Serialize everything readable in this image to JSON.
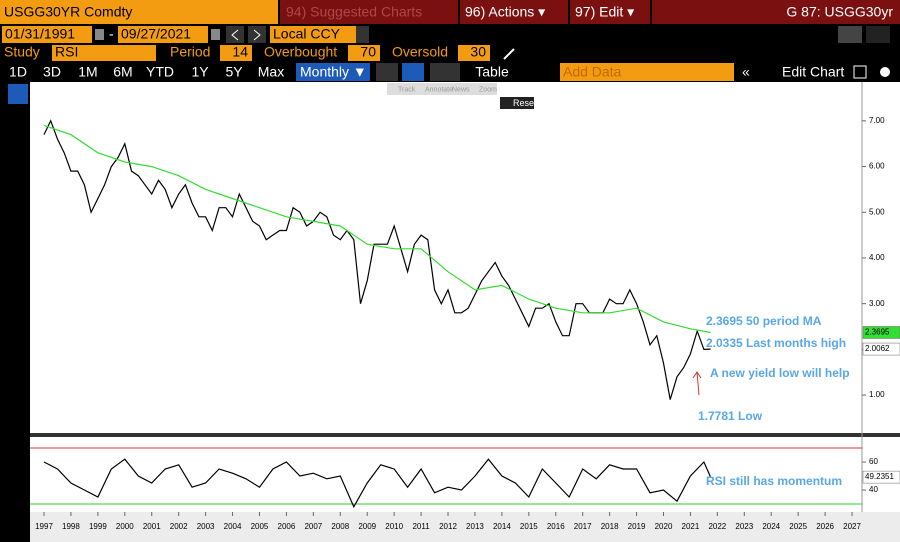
{
  "header": {
    "security": "USGG30YR Comdty",
    "suggested": "94) Suggested Charts",
    "actions": "96) Actions ▾",
    "edit": "97) Edit ▾",
    "page": "G 87: USGG30yr"
  },
  "controls": {
    "start": "01/31/1991",
    "dash": "-",
    "end": "09/27/2021",
    "currency": "Local CCY",
    "study_label": "Study",
    "study": "RSI",
    "period_label": "Period",
    "period": 14,
    "overbought_label": "Overbought",
    "overbought": 70,
    "oversold_label": "Oversold",
    "oversold": 30
  },
  "ranges": [
    "1D",
    "3D",
    "1M",
    "6M",
    "YTD",
    "1Y",
    "5Y",
    "Max"
  ],
  "frequency": "Monthly ▼",
  "table": "Table",
  "add_data": "Add Data",
  "edit_chart": "Edit Chart",
  "mini_toolbar": [
    "Track",
    "Annotate",
    "News",
    "Zoom"
  ],
  "reset": "Reset",
  "chart_data": [
    {
      "type": "line",
      "xlim": [
        1996.48,
        2027.37
      ],
      "ylim": [
        0.17,
        7.85
      ],
      "yticks": [
        {
          "value": 1,
          "label": "1.00"
        },
        {
          "value": 2,
          "label": "2.00"
        },
        {
          "value": 3,
          "label": "3.00"
        },
        {
          "value": 4,
          "label": "4.00"
        },
        {
          "value": 5,
          "label": "5.00"
        },
        {
          "value": 6,
          "label": "6.00"
        },
        {
          "value": 7,
          "label": "7.00"
        }
      ],
      "series": [
        {
          "color": "#000000",
          "x": [
            1997,
            1997.25,
            1997.5,
            1997.75,
            1998,
            1998.25,
            1998.5,
            1998.75,
            1999,
            1999.25,
            1999.5,
            1999.75,
            2000,
            2000.25,
            2000.5,
            2000.75,
            2001,
            2001.25,
            2001.5,
            2001.75,
            2002,
            2002.25,
            2002.5,
            2002.75,
            2003,
            2003.25,
            2003.5,
            2003.75,
            2004,
            2004.25,
            2004.5,
            2004.75,
            2005,
            2005.25,
            2005.5,
            2005.75,
            2006,
            2006.25,
            2006.5,
            2006.75,
            2007,
            2007.25,
            2007.5,
            2007.75,
            2008,
            2008.25,
            2008.5,
            2008.75,
            2009,
            2009.25,
            2009.5,
            2009.75,
            2010,
            2010.25,
            2010.5,
            2010.75,
            2011,
            2011.25,
            2011.5,
            2011.75,
            2012,
            2012.25,
            2012.5,
            2012.75,
            2013,
            2013.25,
            2013.5,
            2013.75,
            2014,
            2014.25,
            2014.5,
            2014.75,
            2015,
            2015.25,
            2015.5,
            2015.75,
            2016,
            2016.25,
            2016.5,
            2016.75,
            2017,
            2017.25,
            2017.5,
            2017.75,
            2018,
            2018.25,
            2018.5,
            2018.75,
            2019,
            2019.25,
            2019.5,
            2019.75,
            2020,
            2020.25,
            2020.5,
            2020.75,
            2021,
            2021.25,
            2021.5,
            2021.75
          ],
          "values": [
            6.7,
            7.0,
            6.6,
            6.3,
            5.9,
            5.9,
            5.6,
            5.0,
            5.3,
            5.6,
            6.0,
            6.2,
            6.5,
            5.9,
            5.8,
            5.6,
            5.4,
            5.7,
            5.5,
            5.1,
            5.4,
            5.6,
            5.2,
            4.9,
            4.9,
            4.6,
            5.1,
            5.1,
            4.9,
            5.4,
            5.1,
            4.8,
            4.7,
            4.4,
            4.5,
            4.6,
            4.6,
            5.1,
            5.0,
            4.7,
            4.8,
            5.0,
            4.9,
            4.5,
            4.4,
            4.6,
            4.4,
            3.0,
            3.5,
            4.3,
            4.3,
            4.3,
            4.7,
            4.2,
            3.7,
            4.3,
            4.5,
            4.4,
            3.3,
            3.0,
            3.3,
            2.8,
            2.8,
            2.9,
            3.2,
            3.5,
            3.7,
            3.9,
            3.6,
            3.4,
            3.1,
            2.8,
            2.5,
            2.9,
            2.9,
            3.0,
            2.6,
            2.3,
            2.3,
            3.0,
            3.0,
            2.8,
            2.8,
            2.8,
            3.1,
            3.0,
            3.0,
            3.3,
            3.0,
            2.6,
            2.1,
            2.3,
            1.7,
            0.9,
            1.4,
            1.6,
            1.9,
            2.4,
            2.0,
            2.0062
          ]
        },
        {
          "color": "#33dd33",
          "x": [
            1997,
            1998,
            1999,
            2000,
            2001,
            2002,
            2003,
            2004,
            2005,
            2006,
            2007,
            2008,
            2009,
            2010,
            2011,
            2012,
            2013,
            2014,
            2015,
            2016,
            2017,
            2018,
            2019,
            2020,
            2021,
            2021.75
          ],
          "values": [
            6.9,
            6.7,
            6.3,
            6.1,
            6.0,
            5.8,
            5.5,
            5.3,
            5.1,
            4.9,
            4.8,
            4.7,
            4.3,
            4.2,
            4.2,
            3.7,
            3.3,
            3.4,
            3.1,
            2.9,
            2.8,
            2.8,
            2.9,
            2.6,
            2.45,
            2.3695
          ]
        }
      ],
      "current_values": [
        2.3695,
        2.0062
      ],
      "annotations": [
        "2.3695 50 period MA",
        "2.0335 Last months high",
        "A new yield low will help",
        "1.7781 Low"
      ]
    },
    {
      "type": "line",
      "xlim": [
        1996.48,
        2027.37
      ],
      "ylim": [
        24.3,
        77.9
      ],
      "xticks": [
        1997,
        1998,
        1999,
        2000,
        2001,
        2002,
        2003,
        2004,
        2005,
        2006,
        2007,
        2008,
        2009,
        2010,
        2011,
        2012,
        2013,
        2014,
        2015,
        2016,
        2017,
        2018,
        2019,
        2020,
        2021,
        2022,
        2023,
        2024,
        2025,
        2026,
        2027
      ],
      "yticks": [
        40,
        60
      ],
      "series": [
        {
          "color": "#000000",
          "x": [
            1997,
            1997.5,
            1998,
            1998.5,
            1999,
            1999.5,
            2000,
            2000.5,
            2001,
            2001.5,
            2002,
            2002.5,
            2003,
            2003.5,
            2004,
            2004.5,
            2005,
            2005.5,
            2006,
            2006.5,
            2007,
            2007.5,
            2008,
            2008.5,
            2009,
            2009.5,
            2010,
            2010.5,
            2011,
            2011.5,
            2012,
            2012.5,
            2013,
            2013.5,
            2014,
            2014.5,
            2015,
            2015.5,
            2016,
            2016.5,
            2017,
            2017.5,
            2018,
            2018.5,
            2019,
            2019.5,
            2020,
            2020.5,
            2021,
            2021.5,
            2021.75
          ],
          "values": [
            60,
            55,
            45,
            40,
            35,
            55,
            62,
            50,
            45,
            55,
            58,
            42,
            45,
            55,
            52,
            48,
            42,
            55,
            60,
            50,
            52,
            48,
            50,
            28,
            45,
            58,
            55,
            42,
            55,
            38,
            42,
            40,
            50,
            62,
            50,
            45,
            35,
            55,
            45,
            35,
            55,
            48,
            58,
            55,
            55,
            38,
            40,
            32,
            50,
            60,
            49.2351
          ]
        }
      ],
      "current_values": [
        49.2351
      ],
      "annotations": [
        "RSI still has momentum"
      ]
    }
  ]
}
